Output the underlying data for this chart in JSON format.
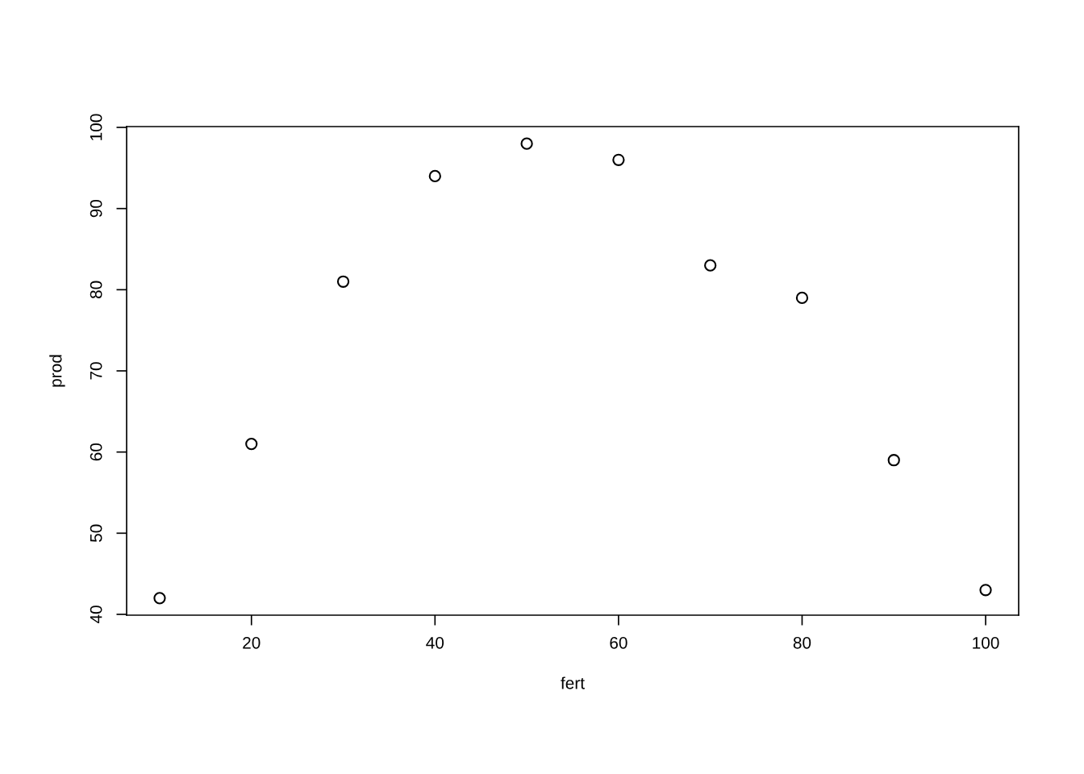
{
  "chart_data": {
    "type": "scatter",
    "xlabel": "fert",
    "ylabel": "prod",
    "x": [
      10,
      20,
      30,
      40,
      50,
      60,
      70,
      80,
      90,
      100
    ],
    "series": [
      {
        "color": "#000000",
        "values": [
          42,
          61,
          81,
          94,
          98,
          96,
          83,
          79,
          59,
          43
        ]
      }
    ],
    "xlim": [
      6.4,
      103.6
    ],
    "ylim": [
      39.9,
      100.1
    ],
    "xticks": [
      20,
      40,
      60,
      80,
      100
    ],
    "yticks": [
      40,
      50,
      60,
      70,
      80,
      90,
      100
    ],
    "marker": "circle",
    "grid": false,
    "legend": false
  }
}
